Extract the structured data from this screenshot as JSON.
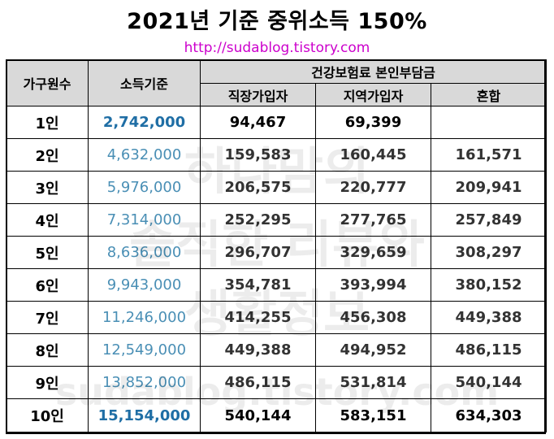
{
  "title": "2021년 기준 중위소득 150%",
  "url": "http://sudablog.tistory.com",
  "watermark": {
    "line1": "하나맘의",
    "line2": "솔직한 리뷰와",
    "line3": "생활정보",
    "line4": "sudablog.tistory.com"
  },
  "headers": {
    "household": "가구원수",
    "income": "소득기준",
    "insurance": "건강보험료 본인부담금",
    "employee": "직장가입자",
    "regional": "지역가입자",
    "mixed": "혼합"
  },
  "rows": [
    {
      "household": "1인",
      "income": "2,742,000",
      "employee": "94,467",
      "regional": "69,399",
      "mixed": ""
    },
    {
      "household": "2인",
      "income": "4,632,000",
      "employee": "159,583",
      "regional": "160,445",
      "mixed": "161,571"
    },
    {
      "household": "3인",
      "income": "5,976,000",
      "employee": "206,575",
      "regional": "220,777",
      "mixed": "209,941"
    },
    {
      "household": "4인",
      "income": "7,314,000",
      "employee": "252,295",
      "regional": "277,765",
      "mixed": "257,849"
    },
    {
      "household": "5인",
      "income": "8,636,000",
      "employee": "296,707",
      "regional": "329,659",
      "mixed": "308,297"
    },
    {
      "household": "6인",
      "income": "9,943,000",
      "employee": "354,781",
      "regional": "393,994",
      "mixed": "380,152"
    },
    {
      "household": "7인",
      "income": "11,246,000",
      "employee": "414,255",
      "regional": "456,308",
      "mixed": "449,388"
    },
    {
      "household": "8인",
      "income": "12,549,000",
      "employee": "449,388",
      "regional": "494,952",
      "mixed": "486,115"
    },
    {
      "household": "9인",
      "income": "13,852,000",
      "employee": "486,115",
      "regional": "531,814",
      "mixed": "540,144"
    },
    {
      "household": "10인",
      "income": "15,154,000",
      "employee": "540,144",
      "regional": "583,151",
      "mixed": "634,303"
    }
  ],
  "colors": {
    "header_bg": "#d9d9d9",
    "income_text": "#4a8fb5",
    "url_text": "#cc00cc"
  }
}
